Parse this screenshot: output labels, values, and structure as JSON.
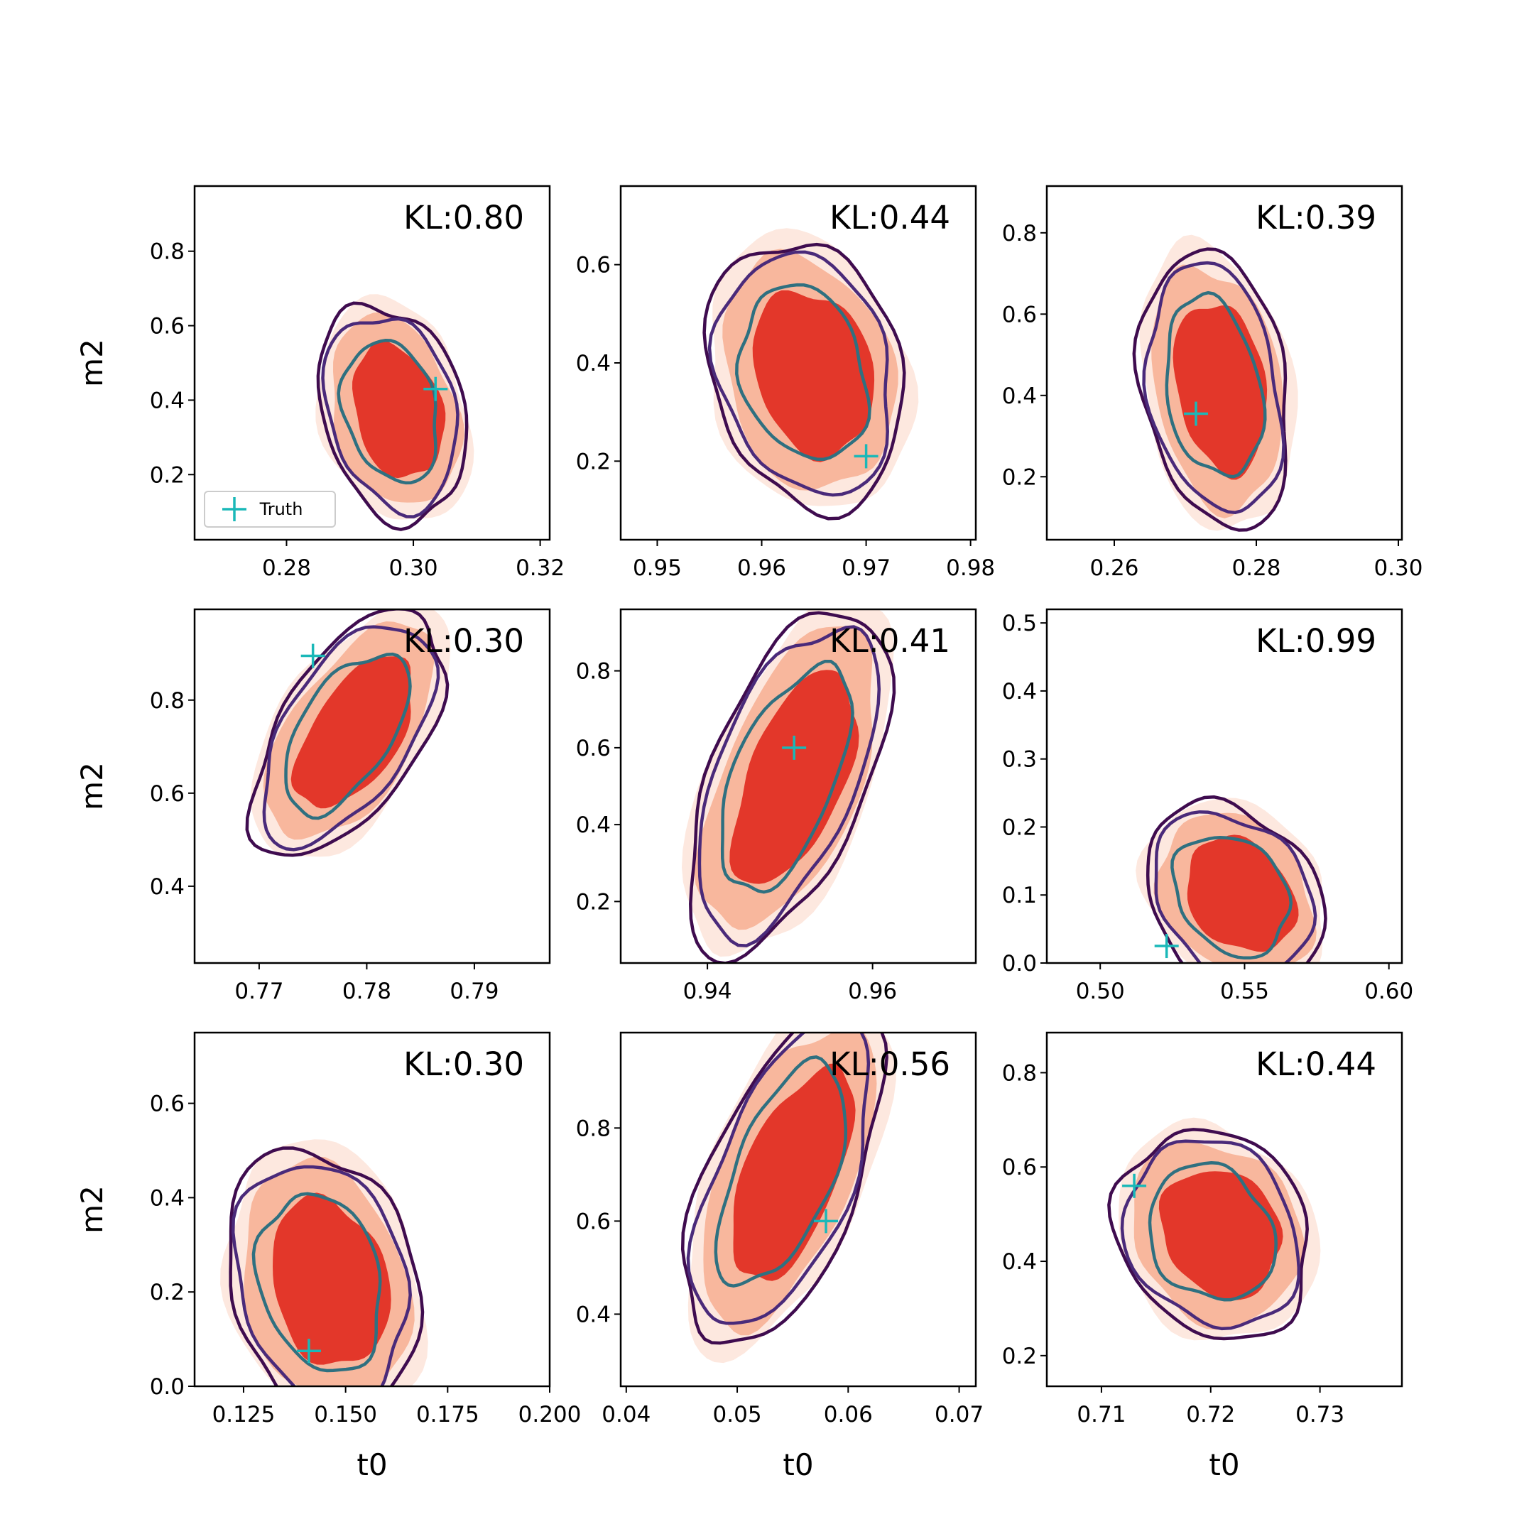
{
  "figure": {
    "legend": {
      "label": "Truth",
      "marker_color": "#1ab8b8"
    },
    "colors": {
      "fill_outer": "#fde8df",
      "fill_mid": "#f8b79d",
      "fill_inner": "#e3372a",
      "contour_outer": "#3f0c4f",
      "contour_mid": "#4a2a7a",
      "contour_inner": "#2f7080",
      "truth": "#1ab8b8"
    }
  },
  "chart_data": [
    {
      "type": "scatter",
      "title": "",
      "annotation": "KL:0.80",
      "xlabel": "",
      "ylabel": "m2",
      "xlim": [
        0.2655,
        0.3215
      ],
      "ylim": [
        0.025,
        0.975
      ],
      "xticks": [
        "0.28",
        "0.30",
        "0.32"
      ],
      "yticks": [
        "0.2",
        "0.4",
        "0.6",
        "0.8"
      ],
      "truth": {
        "x": 0.3035,
        "y": 0.43
      },
      "legend": true,
      "centroid": {
        "x": 0.297,
        "y": 0.37
      },
      "size": {
        "x": 0.0072,
        "y": 0.175
      },
      "shear": 0.3
    },
    {
      "type": "scatter",
      "title": "",
      "annotation": "KL:0.44",
      "xlabel": "",
      "ylabel": "",
      "xlim": [
        0.9465,
        0.9805
      ],
      "ylim": [
        0.04,
        0.76
      ],
      "xticks": [
        "0.95",
        "0.96",
        "0.97",
        "0.98"
      ],
      "yticks": [
        "0.2",
        "0.4",
        "0.6"
      ],
      "truth": {
        "x": 0.97,
        "y": 0.21
      },
      "legend": false,
      "centroid": {
        "x": 0.9645,
        "y": 0.38
      },
      "size": {
        "x": 0.0058,
        "y": 0.165
      },
      "shear": 0.25
    },
    {
      "type": "scatter",
      "title": "",
      "annotation": "KL:0.39",
      "xlabel": "",
      "ylabel": "",
      "xlim": [
        0.2505,
        0.3005
      ],
      "ylim": [
        0.045,
        0.915
      ],
      "xticks": [
        "0.26",
        "0.28",
        "0.30"
      ],
      "yticks": [
        "0.2",
        "0.4",
        "0.6",
        "0.8"
      ],
      "truth": {
        "x": 0.2715,
        "y": 0.355
      },
      "legend": false,
      "centroid": {
        "x": 0.2745,
        "y": 0.42
      },
      "size": {
        "x": 0.0065,
        "y": 0.205
      },
      "shear": 0.3
    },
    {
      "type": "scatter",
      "title": "",
      "annotation": "KL:0.30",
      "xlabel": "",
      "ylabel": "m2",
      "xlim": [
        0.764,
        0.797
      ],
      "ylim": [
        0.235,
        0.995
      ],
      "xticks": [
        "0.77",
        "0.78",
        "0.79"
      ],
      "yticks": [
        "0.4",
        "0.6",
        "0.8"
      ],
      "truth": {
        "x": 0.775,
        "y": 0.895
      },
      "legend": false,
      "centroid": {
        "x": 0.7785,
        "y": 0.73
      },
      "size": {
        "x": 0.0055,
        "y": 0.135
      },
      "shear": -0.85
    },
    {
      "type": "scatter",
      "title": "",
      "annotation": "KL:0.41",
      "xlabel": "",
      "ylabel": "",
      "xlim": [
        0.9295,
        0.9725
      ],
      "ylim": [
        0.04,
        0.96
      ],
      "xticks": [
        "0.94",
        "0.96"
      ],
      "yticks": [
        "0.2",
        "0.4",
        "0.6",
        "0.8"
      ],
      "truth": {
        "x": 0.9505,
        "y": 0.6
      },
      "legend": false,
      "centroid": {
        "x": 0.95,
        "y": 0.52
      },
      "size": {
        "x": 0.0075,
        "y": 0.23
      },
      "shear": -0.85
    },
    {
      "type": "scatter",
      "title": "",
      "annotation": "KL:0.99",
      "xlabel": "",
      "ylabel": "",
      "xlim": [
        0.4815,
        0.6045
      ],
      "ylim": [
        0.0,
        0.52
      ],
      "xticks": [
        "0.50",
        "0.55",
        "0.60"
      ],
      "yticks": [
        "0.0",
        "0.1",
        "0.2",
        "0.3",
        "0.4",
        "0.5"
      ],
      "truth": {
        "x": 0.523,
        "y": 0.025
      },
      "legend": false,
      "centroid": {
        "x": 0.547,
        "y": 0.1
      },
      "size": {
        "x": 0.019,
        "y": 0.082
      },
      "shear": 0.3
    },
    {
      "type": "scatter",
      "title": "",
      "annotation": "KL:0.30",
      "xlabel": "t0",
      "ylabel": "m2",
      "xlim": [
        0.113,
        0.2
      ],
      "ylim": [
        0.0,
        0.75
      ],
      "xticks": [
        "0.125",
        "0.150",
        "0.175",
        "0.200"
      ],
      "yticks": [
        "0.0",
        "0.2",
        "0.4",
        "0.6"
      ],
      "truth": {
        "x": 0.141,
        "y": 0.075
      },
      "legend": false,
      "centroid": {
        "x": 0.145,
        "y": 0.22
      },
      "size": {
        "x": 0.0145,
        "y": 0.175
      },
      "shear": 0.25
    },
    {
      "type": "scatter",
      "title": "",
      "annotation": "KL:0.56",
      "xlabel": "t0",
      "ylabel": "",
      "xlim": [
        0.0395,
        0.0715
      ],
      "ylim": [
        0.245,
        1.005
      ],
      "xticks": [
        "0.04",
        "0.05",
        "0.06",
        "0.07"
      ],
      "yticks": [
        "0.4",
        "0.6",
        "0.8"
      ],
      "truth": {
        "x": 0.058,
        "y": 0.6
      },
      "legend": false,
      "centroid": {
        "x": 0.0545,
        "y": 0.7
      },
      "size": {
        "x": 0.0055,
        "y": 0.185
      },
      "shear": -0.9
    },
    {
      "type": "scatter",
      "title": "",
      "annotation": "KL:0.44",
      "xlabel": "t0",
      "ylabel": "",
      "xlim": [
        0.705,
        0.7375
      ],
      "ylim": [
        0.135,
        0.885
      ],
      "xticks": [
        "0.71",
        "0.72",
        "0.73"
      ],
      "yticks": [
        "0.2",
        "0.4",
        "0.6",
        "0.8"
      ],
      "truth": {
        "x": 0.713,
        "y": 0.56
      },
      "legend": false,
      "centroid": {
        "x": 0.7205,
        "y": 0.46
      },
      "size": {
        "x": 0.0055,
        "y": 0.135
      },
      "shear": 0.2
    }
  ]
}
